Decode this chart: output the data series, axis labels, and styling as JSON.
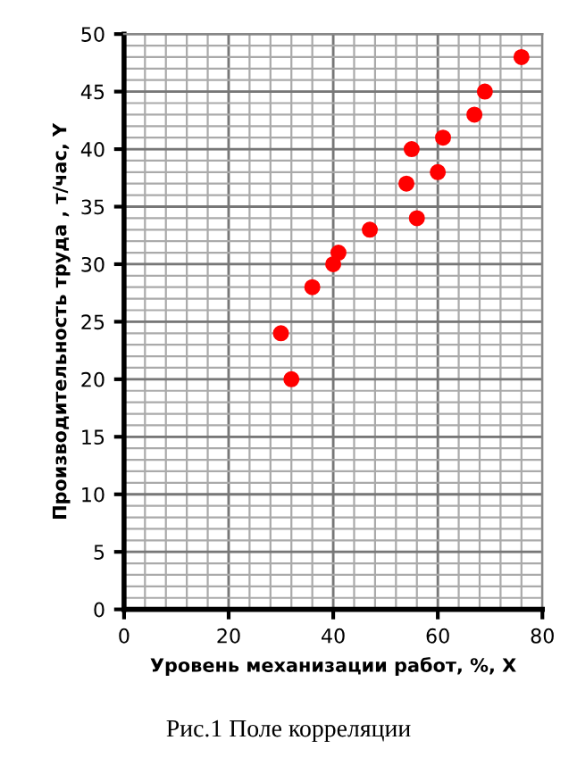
{
  "chart_data": {
    "type": "scatter",
    "xlabel": "Уровень механизации работ, %, X",
    "ylabel": "Производительность труда , т/час, Y",
    "x": [
      30,
      32,
      36,
      40,
      41,
      47,
      54,
      55,
      56,
      60,
      61,
      67,
      69,
      76
    ],
    "series": [
      {
        "color": "#ff0000",
        "values": [
          24,
          20,
          28,
          30,
          31,
          33,
          37,
          40,
          34,
          38,
          41,
          43,
          45,
          48
        ]
      }
    ],
    "xlim": [
      0,
      80
    ],
    "xticks": [
      0,
      20,
      40,
      60,
      80
    ],
    "ylim": [
      0,
      50
    ],
    "yticks": [
      0,
      5,
      10,
      15,
      20,
      25,
      30,
      35,
      40,
      45,
      50
    ],
    "grid": true,
    "marker": "circle",
    "annotations": [
      "Рис.1 Поле корреляции"
    ]
  }
}
